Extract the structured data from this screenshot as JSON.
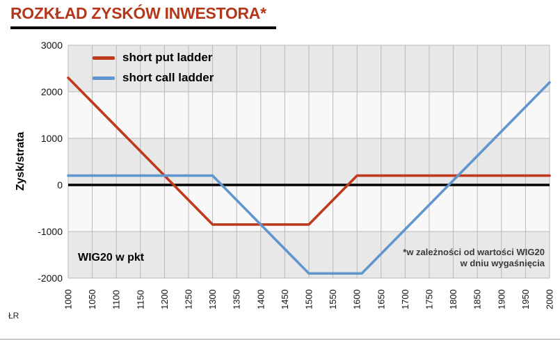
{
  "page": {
    "title": "ROZKŁAD ZYSKÓW INWESTORA*",
    "credit": "ŁR"
  },
  "chart_data": {
    "type": "line",
    "title": "ROZKŁAD ZYSKÓW INWESTORA*",
    "ylabel": "Zysk/strata",
    "xlabel_inside": "WIG20 w pkt",
    "xlim": [
      1000,
      2000
    ],
    "ylim": [
      -2000,
      3000
    ],
    "x_ticks": [
      1000,
      1050,
      1100,
      1150,
      1200,
      1250,
      1300,
      1350,
      1400,
      1450,
      1500,
      1550,
      1600,
      1650,
      1700,
      1750,
      1800,
      1850,
      1900,
      1950,
      2000
    ],
    "y_ticks": [
      3000,
      2000,
      1000,
      0,
      -1000,
      -2000
    ],
    "grid": true,
    "legend_position": "top-left",
    "series": [
      {
        "name": "short put ladder",
        "color": "#bf3a1d",
        "points": [
          [
            1000,
            2300
          ],
          [
            1300,
            -850
          ],
          [
            1500,
            -850
          ],
          [
            1600,
            200
          ],
          [
            2000,
            200
          ]
        ]
      },
      {
        "name": "short call ladder",
        "color": "#6096ce",
        "points": [
          [
            1000,
            200
          ],
          [
            1300,
            200
          ],
          [
            1500,
            -1900
          ],
          [
            1610,
            -1900
          ],
          [
            2000,
            2200
          ]
        ]
      }
    ],
    "annotation": {
      "line1": "*w zależności od wartości WIG20",
      "line2": "w dniu wygaśnięcia"
    },
    "style": {
      "band_dark": "#e8e8e8",
      "band_light": "#f8f8f8",
      "grid": "#b8b8b8",
      "zero_line": "#000000"
    }
  }
}
